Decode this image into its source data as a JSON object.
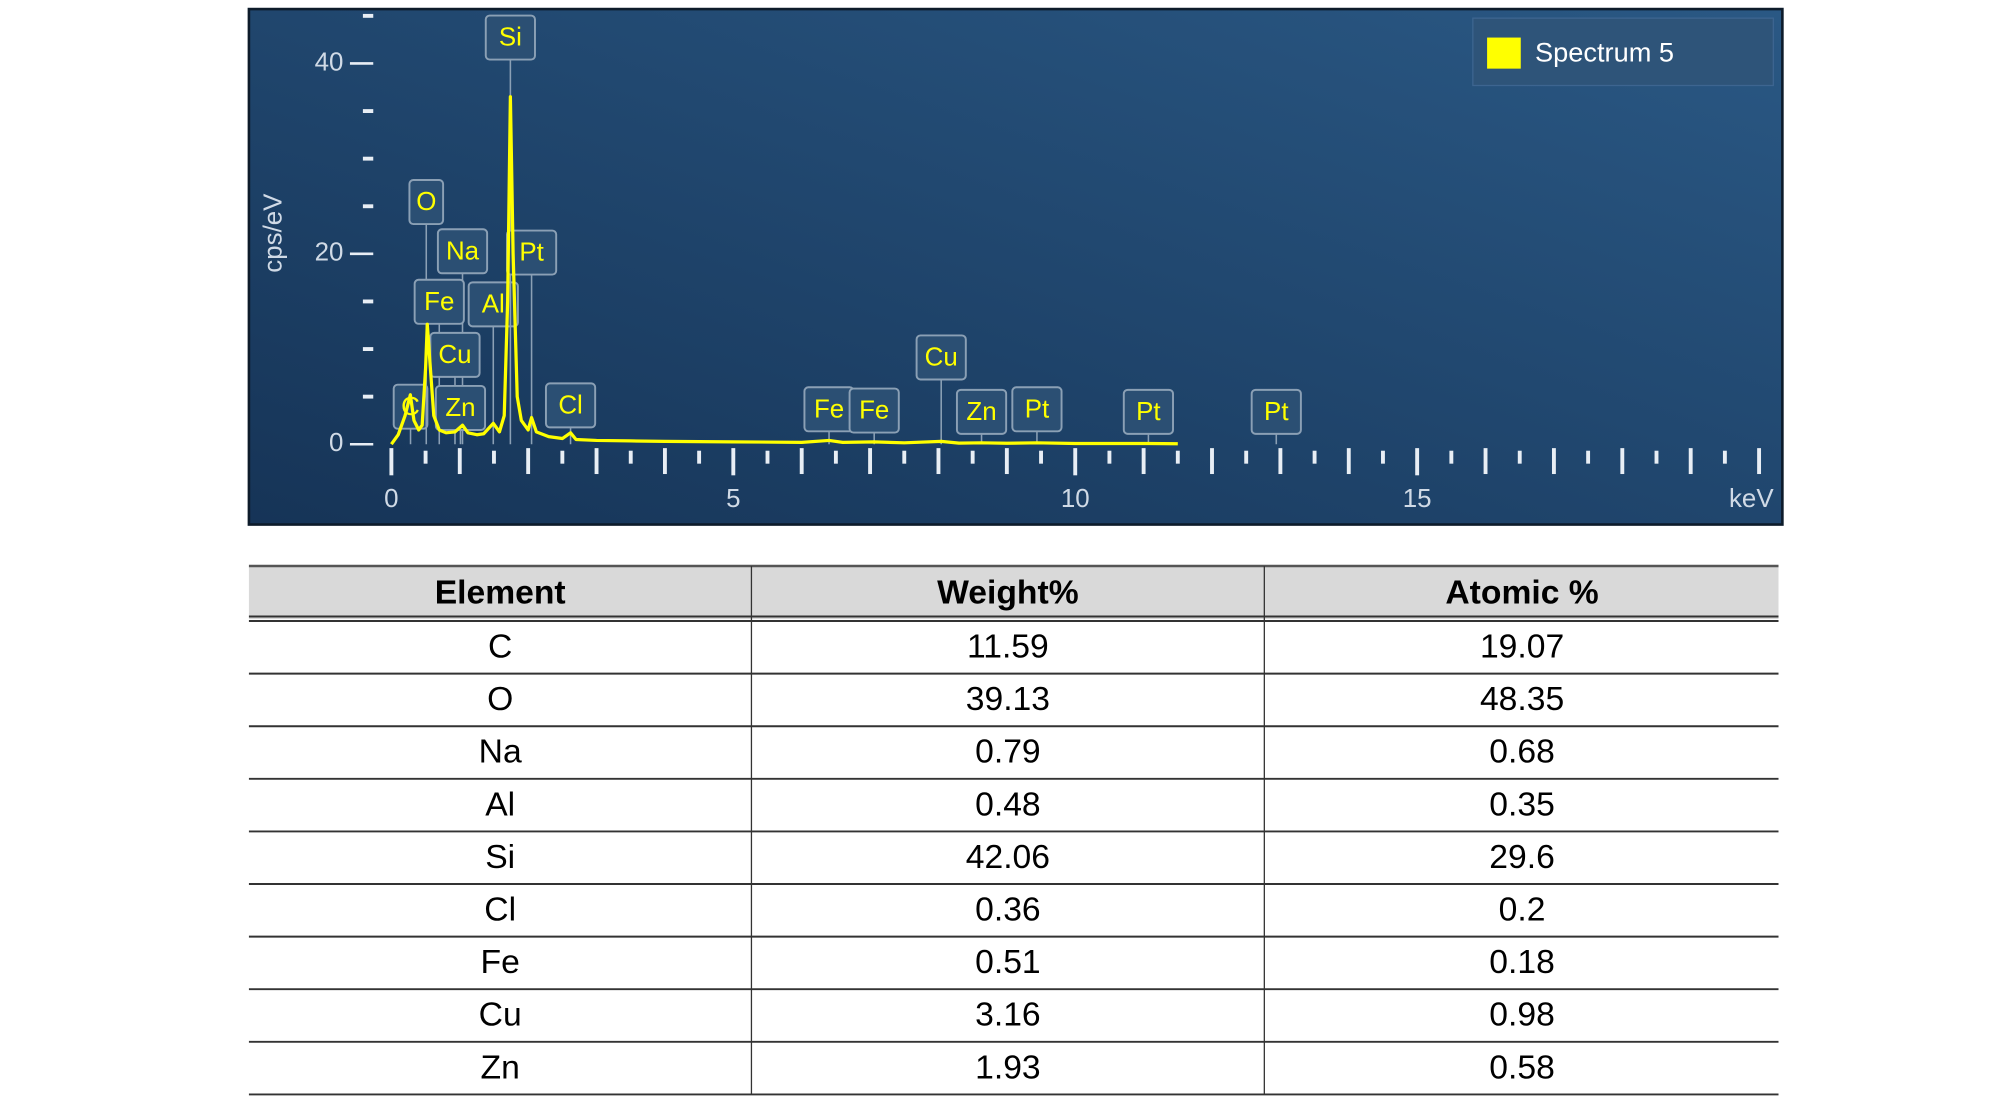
{
  "chart_data": {
    "type": "line",
    "xlabel": "keV",
    "ylabel": "cps/eV",
    "xlim": [
      0,
      20
    ],
    "ylim": [
      0,
      45
    ],
    "xticks": [
      0,
      5,
      10,
      15
    ],
    "xminorticks": [
      0.5,
      1,
      1.5,
      2,
      2.5,
      3,
      3.5,
      4,
      4.5,
      5.5,
      6,
      6.5,
      7,
      7.5,
      8,
      8.5,
      9,
      9.5,
      10.5,
      11,
      11.5,
      12,
      12.5,
      13,
      13.5,
      14,
      14.5,
      15.5,
      16,
      16.5,
      17,
      17.5,
      18,
      18.5,
      19,
      19.5,
      20
    ],
    "yticks": [
      0,
      20,
      40
    ],
    "yminorticks": [
      5,
      10,
      15,
      25,
      30,
      35,
      45
    ],
    "legend": "upper right",
    "series": [
      {
        "name": "Spectrum 5",
        "color": "#ffff00",
        "x": [
          0,
          0.1,
          0.2,
          0.277,
          0.33,
          0.4,
          0.45,
          0.5,
          0.525,
          0.56,
          0.62,
          0.7,
          0.8,
          0.93,
          1.04,
          1.12,
          1.25,
          1.35,
          1.49,
          1.58,
          1.65,
          1.7,
          1.74,
          1.78,
          1.84,
          1.9,
          2.0,
          2.05,
          2.12,
          2.3,
          2.5,
          2.62,
          2.7,
          3.0,
          3.5,
          4.0,
          5.0,
          6.0,
          6.4,
          6.6,
          7.06,
          7.5,
          8.04,
          8.3,
          8.63,
          9.0,
          9.44,
          10.0,
          11.07,
          11.5
        ],
        "values": [
          0,
          1,
          3,
          5.2,
          2.5,
          1.5,
          2,
          8,
          12.6,
          9,
          3,
          1.5,
          1.2,
          1.3,
          2,
          1.2,
          1.0,
          1.1,
          2.2,
          1.3,
          3,
          15,
          36.5,
          20,
          5,
          2.5,
          1.5,
          2.8,
          1.3,
          0.8,
          0.6,
          1.2,
          0.5,
          0.4,
          0.35,
          0.3,
          0.25,
          0.2,
          0.4,
          0.2,
          0.25,
          0.15,
          0.3,
          0.12,
          0.15,
          0.1,
          0.15,
          0.08,
          0.08,
          0.05
        ]
      }
    ],
    "peaks": [
      {
        "label": "C",
        "x": 0.28
      },
      {
        "label": "O",
        "x": 0.51
      },
      {
        "label": "Na",
        "x": 1.04
      },
      {
        "label": "Fe",
        "x": 0.7
      },
      {
        "label": "Cu",
        "x": 0.93
      },
      {
        "label": "Zn",
        "x": 1.01
      },
      {
        "label": "Al",
        "x": 1.49
      },
      {
        "label": "Si",
        "x": 1.74
      },
      {
        "label": "Pt",
        "x": 2.05
      },
      {
        "label": "Cl",
        "x": 2.62
      },
      {
        "label": "Fe",
        "x": 6.4
      },
      {
        "label": "Fe",
        "x": 7.06
      },
      {
        "label": "Cu",
        "x": 8.04
      },
      {
        "label": "Zn",
        "x": 8.63
      },
      {
        "label": "Pt",
        "x": 9.44
      },
      {
        "label": "Pt",
        "x": 11.07
      },
      {
        "label": "Pt",
        "x": 12.94
      }
    ]
  },
  "table": {
    "columns": [
      "Element",
      "Weight%",
      "Atomic %"
    ],
    "rows": [
      [
        "C",
        11.59,
        19.07
      ],
      [
        "O",
        39.13,
        48.35
      ],
      [
        "Na",
        0.79,
        0.68
      ],
      [
        "Al",
        0.48,
        0.35
      ],
      [
        "Si",
        42.06,
        29.6
      ],
      [
        "Cl",
        0.36,
        0.2
      ],
      [
        "Fe",
        0.51,
        0.18
      ],
      [
        "Cu",
        3.16,
        0.98
      ],
      [
        "Zn",
        1.93,
        0.58
      ]
    ]
  }
}
